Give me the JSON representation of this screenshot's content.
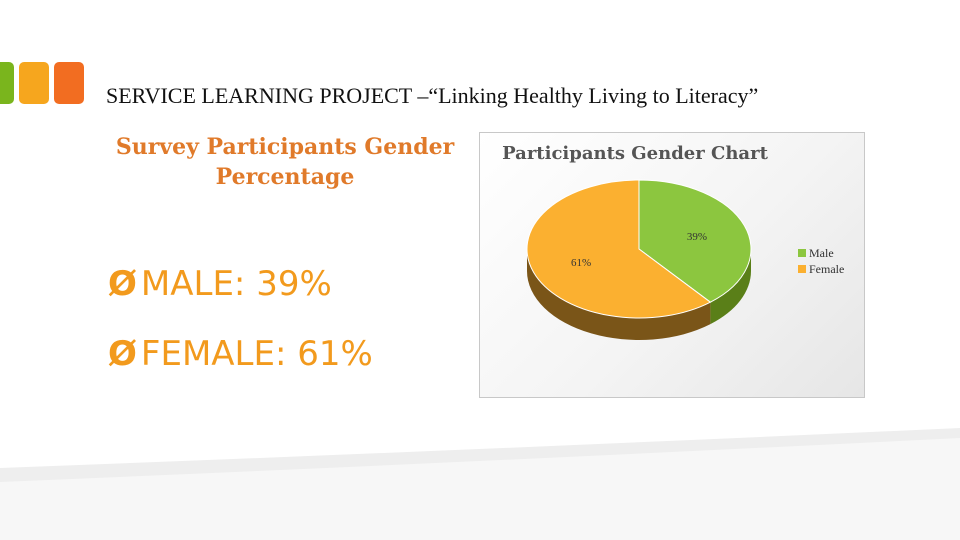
{
  "slide": {
    "title": "SERVICE LEARNING PROJECT –“Linking Healthy Living to Literacy”",
    "heading_line1": "Survey Participants Gender",
    "heading_line2": "Percentage",
    "bullets": [
      {
        "arrow": "Ø",
        "text": "MALE: 39%"
      },
      {
        "arrow": "Ø",
        "text": "FEMALE: 61%"
      }
    ],
    "accent_colors": [
      "#7ab51d",
      "#f6a61e",
      "#f26d21"
    ],
    "bullet_color": "#f29a1d",
    "heading_color": "#e07a2a"
  },
  "chart_data": {
    "type": "pie",
    "title": "Participants Gender Chart",
    "categories": [
      "Male",
      "Female"
    ],
    "values": [
      39,
      61
    ],
    "data_labels": [
      "39%",
      "61%"
    ],
    "colors": [
      "#8cc63f",
      "#fbb030"
    ],
    "side_colors": [
      "#5a7f18",
      "#7a5518"
    ],
    "legend": "right",
    "style": "3d"
  }
}
